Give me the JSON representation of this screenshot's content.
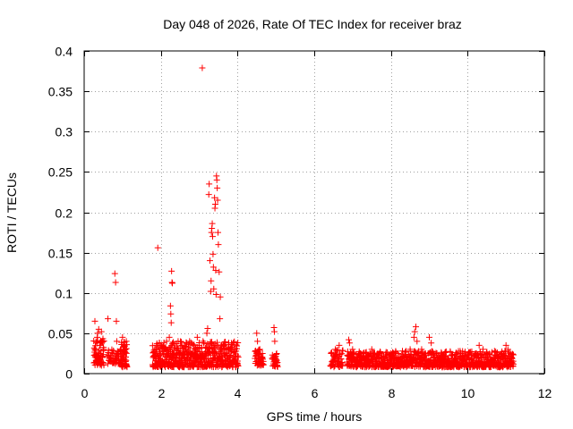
{
  "chart_data": {
    "type": "scatter",
    "title": "Day 048 of 2026, Rate Of TEC Index for receiver braz",
    "xlabel": "GPS time / hours",
    "ylabel": "ROTI / TECUs",
    "xlim": [
      0,
      12
    ],
    "ylim": [
      0,
      0.4
    ],
    "xticks": [
      "0",
      "2",
      "4",
      "6",
      "8",
      "10",
      "12"
    ],
    "yticks": [
      "0",
      "0.05",
      "0.1",
      "0.15",
      "0.2",
      "0.25",
      "0.3",
      "0.35",
      "0.4"
    ],
    "grid": true,
    "marker": "+",
    "color": "#ff0000",
    "series": [
      {
        "points": [
          [
            0.28,
            0.065
          ],
          [
            0.3,
            0.03
          ],
          [
            0.32,
            0.02
          ],
          [
            0.34,
            0.045
          ],
          [
            0.36,
            0.015
          ],
          [
            0.38,
            0.055
          ],
          [
            0.4,
            0.025
          ],
          [
            0.42,
            0.035
          ],
          [
            0.44,
            0.012
          ],
          [
            0.46,
            0.04
          ],
          [
            0.48,
            0.02
          ],
          [
            0.5,
            0.03
          ],
          [
            0.35,
            0.05
          ],
          [
            0.45,
            0.052
          ],
          [
            0.62,
            0.068
          ],
          [
            0.65,
            0.02
          ],
          [
            0.7,
            0.022
          ],
          [
            0.75,
            0.025
          ],
          [
            0.8,
            0.124
          ],
          [
            0.82,
            0.113
          ],
          [
            0.84,
            0.065
          ],
          [
            0.85,
            0.04
          ],
          [
            0.88,
            0.025
          ],
          [
            0.9,
            0.018
          ],
          [
            0.95,
            0.03
          ],
          [
            1.0,
            0.045
          ],
          [
            1.02,
            0.02
          ],
          [
            1.05,
            0.035
          ],
          [
            1.08,
            0.015
          ],
          [
            1.1,
            0.04
          ],
          [
            1.8,
            0.02
          ],
          [
            1.85,
            0.03
          ],
          [
            1.9,
            0.025
          ],
          [
            1.92,
            0.156
          ],
          [
            1.95,
            0.018
          ],
          [
            2.0,
            0.035
          ],
          [
            2.05,
            0.015
          ],
          [
            2.1,
            0.03
          ],
          [
            2.15,
            0.04
          ],
          [
            2.2,
            0.025
          ],
          [
            2.22,
            0.045
          ],
          [
            2.25,
            0.084
          ],
          [
            2.26,
            0.074
          ],
          [
            2.27,
            0.063
          ],
          [
            2.28,
            0.127
          ],
          [
            2.29,
            0.113
          ],
          [
            2.3,
            0.112
          ],
          [
            2.32,
            0.02
          ],
          [
            2.35,
            0.03
          ],
          [
            2.4,
            0.015
          ],
          [
            2.45,
            0.04
          ],
          [
            2.5,
            0.025
          ],
          [
            2.55,
            0.035
          ],
          [
            2.6,
            0.02
          ],
          [
            2.65,
            0.03
          ],
          [
            2.7,
            0.018
          ],
          [
            2.75,
            0.04
          ],
          [
            2.8,
            0.025
          ],
          [
            2.85,
            0.035
          ],
          [
            2.9,
            0.03
          ],
          [
            2.95,
            0.045
          ],
          [
            3.0,
            0.035
          ],
          [
            3.05,
            0.02
          ],
          [
            3.08,
            0.379
          ],
          [
            3.1,
            0.04
          ],
          [
            3.15,
            0.025
          ],
          [
            3.2,
            0.05
          ],
          [
            3.22,
            0.056
          ],
          [
            3.25,
            0.222
          ],
          [
            3.26,
            0.235
          ],
          [
            3.28,
            0.14
          ],
          [
            3.3,
            0.102
          ],
          [
            3.31,
            0.115
          ],
          [
            3.32,
            0.175
          ],
          [
            3.33,
            0.18
          ],
          [
            3.34,
            0.186
          ],
          [
            3.35,
            0.17
          ],
          [
            3.36,
            0.148
          ],
          [
            3.37,
            0.132
          ],
          [
            3.38,
            0.105
          ],
          [
            3.4,
            0.218
          ],
          [
            3.41,
            0.205
          ],
          [
            3.42,
            0.21
          ],
          [
            3.43,
            0.128
          ],
          [
            3.44,
            0.098
          ],
          [
            3.45,
            0.245
          ],
          [
            3.46,
            0.24
          ],
          [
            3.47,
            0.23
          ],
          [
            3.48,
            0.215
          ],
          [
            3.49,
            0.175
          ],
          [
            3.5,
            0.16
          ],
          [
            3.52,
            0.126
          ],
          [
            3.54,
            0.068
          ],
          [
            3.55,
            0.095
          ],
          [
            3.56,
            0.03
          ],
          [
            3.6,
            0.02
          ],
          [
            3.65,
            0.035
          ],
          [
            3.7,
            0.025
          ],
          [
            3.75,
            0.03
          ],
          [
            3.8,
            0.015
          ],
          [
            3.85,
            0.028
          ],
          [
            3.9,
            0.02
          ],
          [
            3.95,
            0.018
          ],
          [
            4.0,
            0.022
          ],
          [
            4.5,
            0.05
          ],
          [
            4.52,
            0.04
          ],
          [
            4.55,
            0.02
          ],
          [
            4.58,
            0.03
          ],
          [
            4.6,
            0.015
          ],
          [
            4.65,
            0.025
          ],
          [
            4.95,
            0.057
          ],
          [
            4.96,
            0.052
          ],
          [
            4.97,
            0.04
          ],
          [
            4.98,
            0.02
          ],
          [
            5.0,
            0.015
          ],
          [
            5.02,
            0.025
          ],
          [
            6.45,
            0.025
          ],
          [
            6.5,
            0.015
          ],
          [
            6.55,
            0.03
          ],
          [
            6.6,
            0.02
          ],
          [
            6.65,
            0.035
          ],
          [
            6.7,
            0.018
          ],
          [
            6.9,
            0.042
          ],
          [
            6.92,
            0.038
          ],
          [
            6.95,
            0.02
          ],
          [
            7.0,
            0.03
          ],
          [
            7.1,
            0.015
          ],
          [
            7.2,
            0.025
          ],
          [
            7.3,
            0.02
          ],
          [
            7.4,
            0.018
          ],
          [
            7.5,
            0.03
          ],
          [
            7.6,
            0.015
          ],
          [
            7.7,
            0.025
          ],
          [
            7.8,
            0.02
          ],
          [
            7.9,
            0.018
          ],
          [
            8.0,
            0.025
          ],
          [
            8.1,
            0.02
          ],
          [
            8.2,
            0.015
          ],
          [
            8.3,
            0.028
          ],
          [
            8.4,
            0.02
          ],
          [
            8.5,
            0.03
          ],
          [
            8.6,
            0.045
          ],
          [
            8.62,
            0.052
          ],
          [
            8.65,
            0.058
          ],
          [
            8.68,
            0.04
          ],
          [
            8.7,
            0.025
          ],
          [
            8.75,
            0.02
          ],
          [
            8.8,
            0.03
          ],
          [
            8.9,
            0.025
          ],
          [
            9.0,
            0.045
          ],
          [
            9.05,
            0.038
          ],
          [
            9.1,
            0.02
          ],
          [
            9.2,
            0.025
          ],
          [
            9.3,
            0.018
          ],
          [
            9.4,
            0.02
          ],
          [
            9.5,
            0.015
          ],
          [
            9.6,
            0.022
          ],
          [
            9.7,
            0.018
          ],
          [
            9.8,
            0.02
          ],
          [
            9.9,
            0.015
          ],
          [
            10.0,
            0.02
          ],
          [
            10.1,
            0.018
          ],
          [
            10.2,
            0.022
          ],
          [
            10.3,
            0.035
          ],
          [
            10.4,
            0.03
          ],
          [
            10.5,
            0.025
          ],
          [
            10.6,
            0.02
          ],
          [
            10.7,
            0.028
          ],
          [
            10.8,
            0.02
          ],
          [
            10.9,
            0.018
          ],
          [
            11.0,
            0.035
          ],
          [
            11.05,
            0.03
          ],
          [
            11.1,
            0.015
          ],
          [
            11.15,
            0.02
          ]
        ]
      }
    ],
    "clusters": [
      [
        0.25,
        0.52,
        0.01,
        0.045,
        70
      ],
      [
        0.6,
        0.95,
        0.012,
        0.03,
        40
      ],
      [
        0.95,
        1.12,
        0.008,
        0.04,
        50
      ],
      [
        1.78,
        4.02,
        0.008,
        0.04,
        520
      ],
      [
        4.45,
        4.68,
        0.01,
        0.03,
        40
      ],
      [
        4.9,
        5.05,
        0.008,
        0.025,
        25
      ],
      [
        6.42,
        6.75,
        0.008,
        0.03,
        50
      ],
      [
        6.85,
        11.2,
        0.008,
        0.028,
        900
      ]
    ]
  }
}
